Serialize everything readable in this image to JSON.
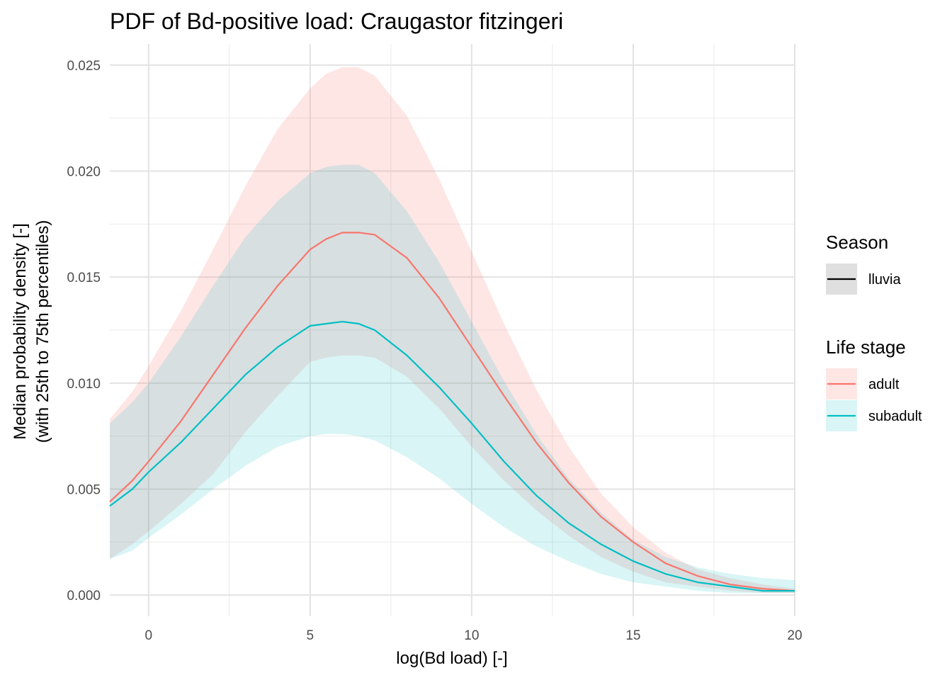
{
  "chart_data": {
    "type": "area",
    "title": "PDF of Bd-positive load: Craugastor fitzingeri",
    "xlabel": "log(Bd load) [-]",
    "ylabel": [
      "Median probability density [-]",
      "(with 25th to 75th percentiles)"
    ],
    "xlim": [
      -1.2,
      20
    ],
    "ylim": [
      -0.001,
      0.026
    ],
    "xticks": [
      0,
      5,
      10,
      15,
      20
    ],
    "xtick_labels": [
      "0",
      "5",
      "10",
      "15",
      "20"
    ],
    "yticks": [
      0.0,
      0.005,
      0.01,
      0.015,
      0.02,
      0.025
    ],
    "ytick_labels": [
      "0.000",
      "0.005",
      "0.010",
      "0.015",
      "0.020",
      "0.025"
    ],
    "grid": true,
    "legend_position": "right",
    "legends": [
      {
        "title": "Season",
        "entries": [
          {
            "label": "lluvia",
            "color": "#000000"
          }
        ]
      },
      {
        "title": "Life stage",
        "entries": [
          {
            "label": "adult",
            "color": "#F8766D"
          },
          {
            "label": "subadult",
            "color": "#00BFC4"
          }
        ]
      }
    ],
    "x": [
      -1.2,
      -0.5,
      0,
      1,
      2,
      3,
      4,
      5,
      5.5,
      6,
      6.5,
      7,
      8,
      9,
      10,
      11,
      12,
      13,
      14,
      15,
      16,
      17,
      18,
      19,
      20
    ],
    "series": [
      {
        "name": "adult",
        "color": "#F8766D",
        "median": [
          0.0044,
          0.0054,
          0.0063,
          0.0082,
          0.0104,
          0.0126,
          0.0146,
          0.0163,
          0.0168,
          0.0171,
          0.0171,
          0.017,
          0.0159,
          0.014,
          0.0117,
          0.0094,
          0.0072,
          0.0053,
          0.0037,
          0.0025,
          0.0015,
          0.0009,
          0.0005,
          0.0003,
          0.0002
        ],
        "lower": [
          0.0017,
          0.0024,
          0.003,
          0.0043,
          0.0057,
          0.0077,
          0.0094,
          0.011,
          0.0112,
          0.0113,
          0.0113,
          0.0112,
          0.0103,
          0.0088,
          0.007,
          0.0054,
          0.004,
          0.0028,
          0.0018,
          0.0011,
          0.0006,
          0.0004,
          0.0002,
          0.0001,
          0.0001
        ],
        "upper": [
          0.0083,
          0.0096,
          0.0108,
          0.0134,
          0.0163,
          0.0193,
          0.022,
          0.0239,
          0.0246,
          0.0249,
          0.0249,
          0.0245,
          0.0226,
          0.0196,
          0.0162,
          0.0128,
          0.0097,
          0.007,
          0.0048,
          0.0032,
          0.002,
          0.0012,
          0.0008,
          0.0005,
          0.0003
        ]
      },
      {
        "name": "subadult",
        "color": "#00BFC4",
        "median": [
          0.0042,
          0.005,
          0.0058,
          0.0072,
          0.0088,
          0.0104,
          0.0117,
          0.0127,
          0.0128,
          0.0129,
          0.0128,
          0.0125,
          0.0113,
          0.0098,
          0.0081,
          0.0063,
          0.0047,
          0.0034,
          0.0024,
          0.0016,
          0.001,
          0.0006,
          0.0004,
          0.0002,
          0.0002
        ],
        "lower": [
          0.0017,
          0.0021,
          0.0027,
          0.0038,
          0.005,
          0.0061,
          0.007,
          0.0075,
          0.0076,
          0.0076,
          0.0075,
          0.0073,
          0.0065,
          0.0055,
          0.0043,
          0.0032,
          0.0023,
          0.0016,
          0.001,
          0.0006,
          0.0004,
          0.0002,
          0.0001,
          0.0001,
          0.0001
        ],
        "upper": [
          0.0081,
          0.0091,
          0.01,
          0.0122,
          0.0146,
          0.0169,
          0.0186,
          0.0199,
          0.0202,
          0.0203,
          0.0203,
          0.0199,
          0.0181,
          0.0157,
          0.0129,
          0.0101,
          0.0076,
          0.0055,
          0.0039,
          0.0026,
          0.0018,
          0.0013,
          0.001,
          0.0008,
          0.0007
        ]
      }
    ]
  }
}
